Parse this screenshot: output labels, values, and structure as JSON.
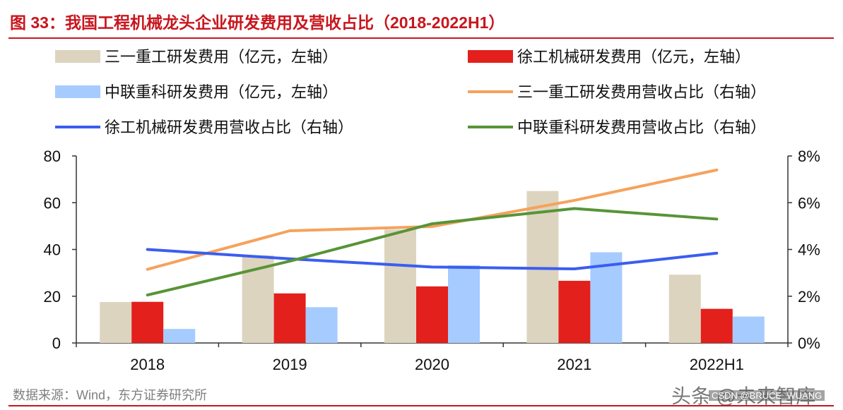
{
  "title": "图 33：我国工程机械龙头企业研发费用及营收占比（2018-2022H1）",
  "source": "数据来源：Wind，东方证券研究所",
  "watermark": "头条 @未来智库",
  "watermark_sub": "CSDN @BRUCE_WUANG",
  "chart_data": {
    "type": "bar",
    "categories": [
      "2018",
      "2019",
      "2020",
      "2021",
      "2022H1"
    ],
    "left_axis": {
      "ylim": [
        0,
        80
      ],
      "ticks": [
        "0",
        "20",
        "40",
        "60",
        "80"
      ]
    },
    "right_axis": {
      "ylim": [
        0,
        8
      ],
      "ticks": [
        "0%",
        "2%",
        "4%",
        "6%",
        "8%"
      ]
    },
    "bar_series": [
      {
        "name": "三一重工研发费用（亿元，左轴）",
        "color": "#ddd4c0",
        "values": [
          17.5,
          37.5,
          48.5,
          65,
          29.2
        ]
      },
      {
        "name": "徐工机械研发费用（亿元，左轴）",
        "color": "#e3201c",
        "values": [
          17.6,
          21.2,
          24.2,
          26.6,
          14.6
        ]
      },
      {
        "name": "中联重科研发费用（亿元，左轴）",
        "color": "#a6cbff",
        "values": [
          6,
          15.3,
          33.2,
          38.8,
          11.3
        ]
      }
    ],
    "line_series": [
      {
        "name": "三一重工研发费用营收占比（右轴）",
        "color": "#f5a25d",
        "values": [
          3.15,
          4.8,
          4.98,
          6.1,
          7.4
        ]
      },
      {
        "name": "徐工机械研发费用营收占比（右轴）",
        "color": "#3a5ef0",
        "values": [
          4.0,
          3.6,
          3.25,
          3.17,
          3.84
        ]
      },
      {
        "name": "中联重科研发费用营收占比（右轴）",
        "color": "#579438",
        "values": [
          2.05,
          3.5,
          5.1,
          5.75,
          5.3
        ]
      }
    ],
    "legend": [
      {
        "label": "三一重工研发费用（亿元，左轴）",
        "kind": "bar",
        "color": "#ddd4c0"
      },
      {
        "label": "徐工机械研发费用（亿元，左轴）",
        "kind": "bar",
        "color": "#e3201c"
      },
      {
        "label": "中联重科研发费用（亿元，左轴）",
        "kind": "bar",
        "color": "#a6cbff"
      },
      {
        "label": "三一重工研发费用营收占比（右轴）",
        "kind": "line",
        "color": "#f5a25d"
      },
      {
        "label": "徐工机械研发费用营收占比（右轴）",
        "kind": "line",
        "color": "#3a5ef0"
      },
      {
        "label": "中联重科研发费用营收占比（右轴）",
        "kind": "line",
        "color": "#579438"
      }
    ],
    "legend_position": "top"
  }
}
